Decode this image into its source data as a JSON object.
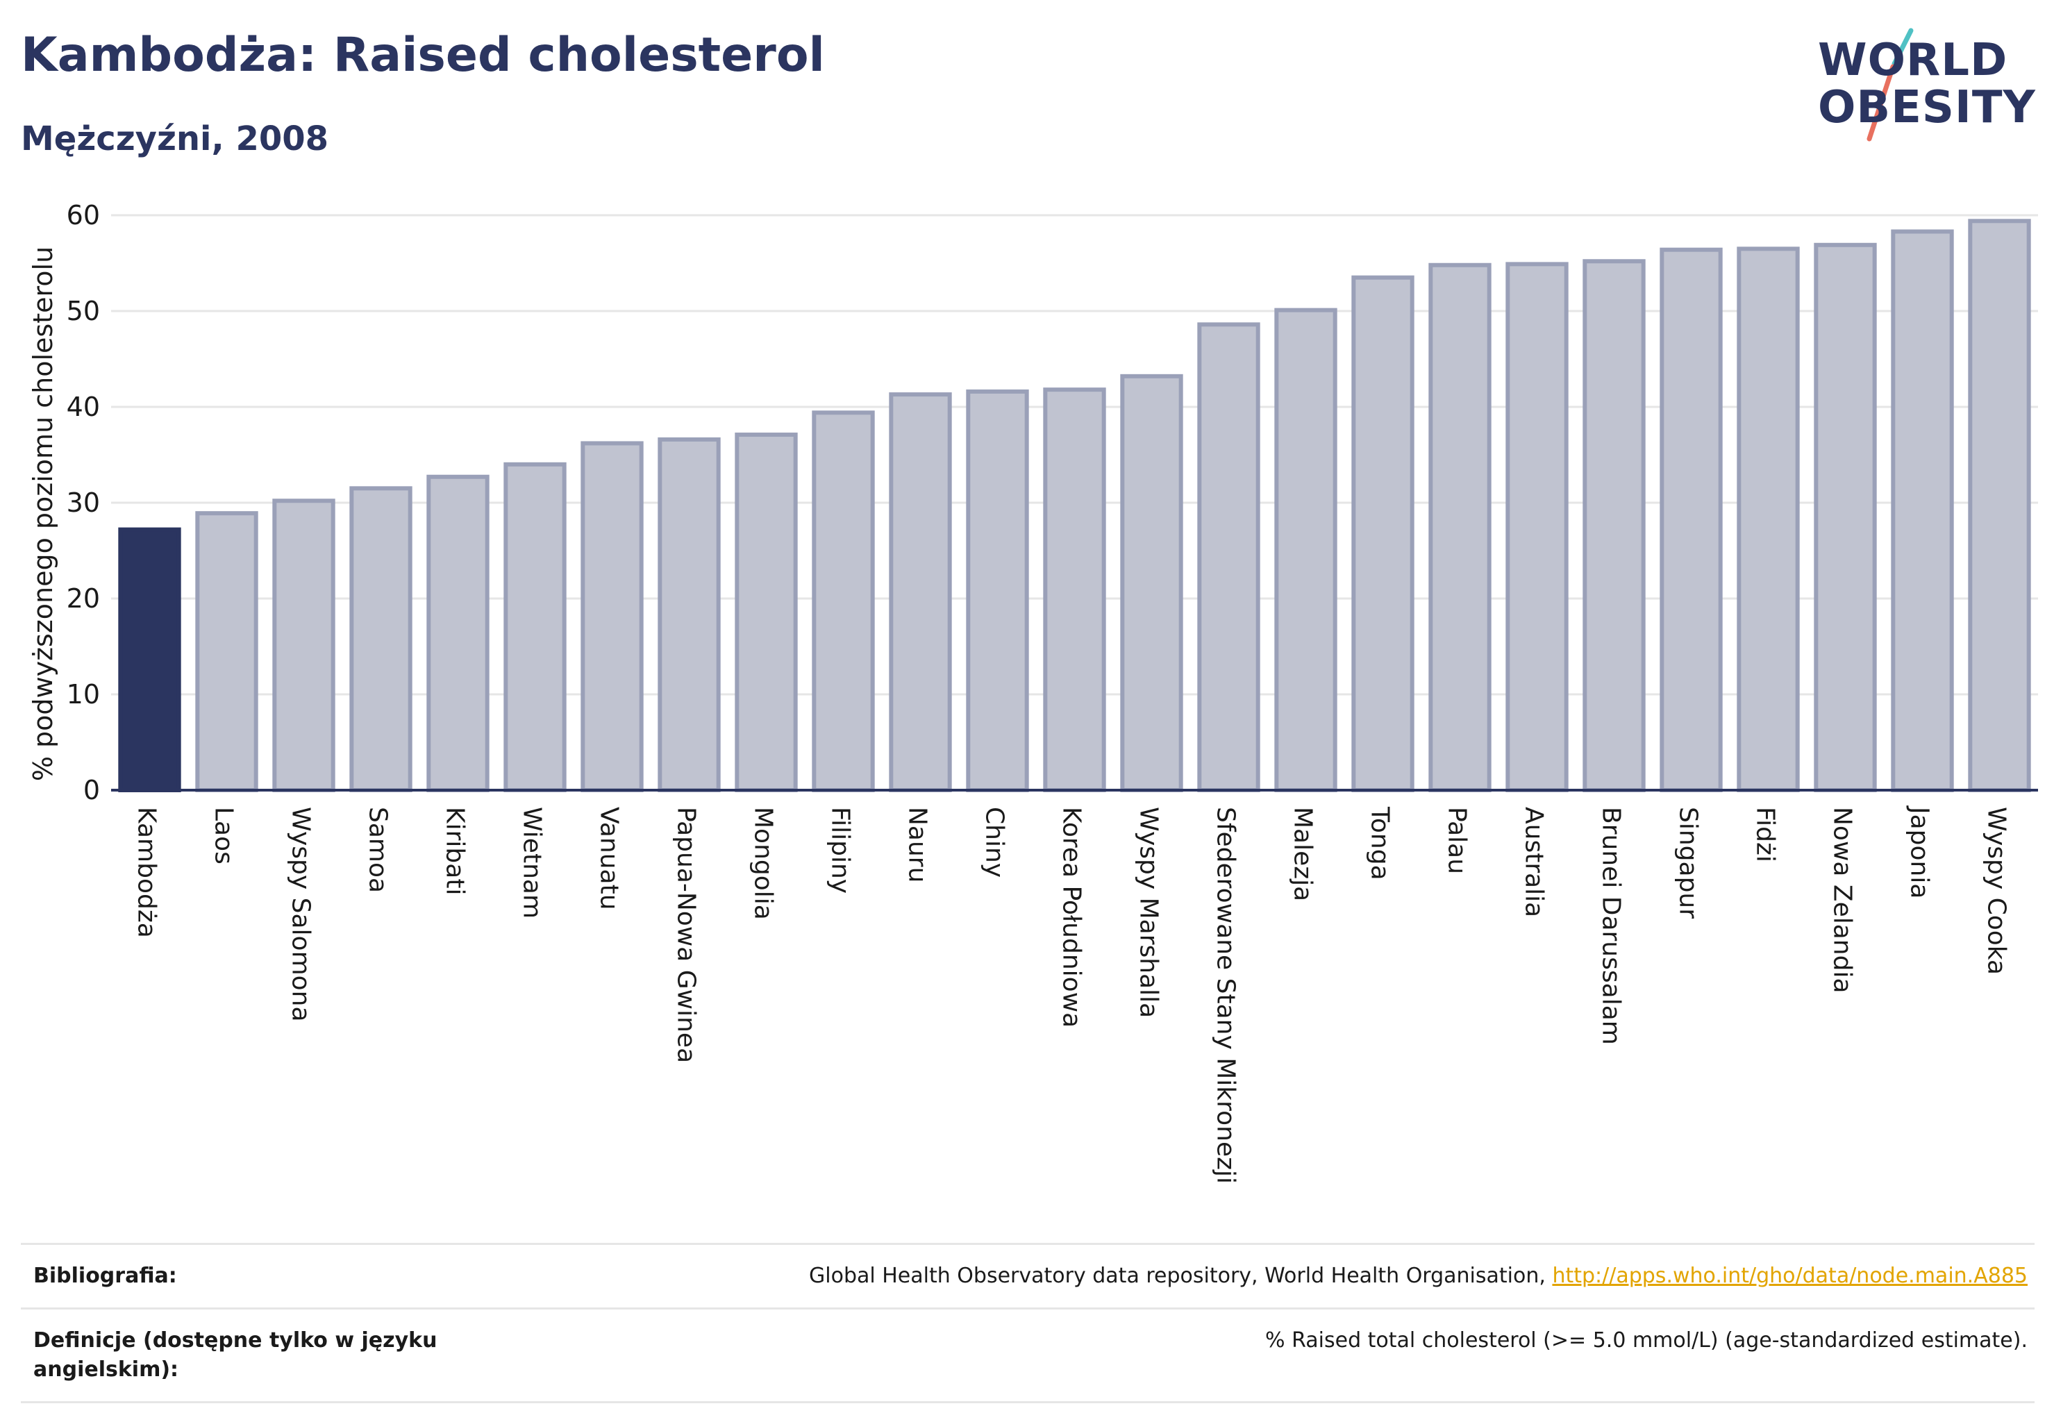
{
  "header": {
    "title": "Kambodża: Raised cholesterol",
    "subtitle": "Mężczyźni, 2008"
  },
  "logo": {
    "line1": "WORLD",
    "line2": "OBESITY",
    "slash_colors": [
      "#4fc1c4",
      "#e8705f"
    ]
  },
  "colors": {
    "highlight_bar": "#2b3560",
    "bar_fill": "#c0c3d0",
    "bar_stroke": "#9aa0b8",
    "grid": "#e6e6e6",
    "axis": "#2b3560"
  },
  "chart_data": {
    "type": "bar",
    "ylabel": "% podwyższonego poziomu cholesterolu",
    "ylim": [
      0,
      60
    ],
    "yticks": [
      0,
      10,
      20,
      30,
      40,
      50,
      60
    ],
    "grid": true,
    "highlight": "Kambodża",
    "categories": [
      "Kambodża",
      "Laos",
      "Wyspy Salomona",
      "Samoa",
      "Kiribati",
      "Wietnam",
      "Vanuatu",
      "Papua-Nowa Gwinea",
      "Mongolia",
      "Filipiny",
      "Nauru",
      "Chiny",
      "Korea Południowa",
      "Wyspy Marshalla",
      "Sfederowane Stany Mikronezji",
      "Malezja",
      "Tonga",
      "Palau",
      "Australia",
      "Brunei Darussalam",
      "Singapur",
      "Fidżi",
      "Nowa Zelandia",
      "Japonia",
      "Wyspy Cooka"
    ],
    "values": [
      27.2,
      28.9,
      30.2,
      31.5,
      32.7,
      34.0,
      36.2,
      36.6,
      37.1,
      39.4,
      41.3,
      41.6,
      41.8,
      43.2,
      48.6,
      50.1,
      53.5,
      54.8,
      54.9,
      55.2,
      56.4,
      56.5,
      56.9,
      58.3,
      59.4
    ]
  },
  "footer": {
    "rows": [
      {
        "label": "Bibliografia:",
        "text": "Global Health Observatory data repository, World Health Organisation, ",
        "link": "http://apps.who.int/gho/data/node.main.A885"
      },
      {
        "label": "Definicje (dostępne tylko w języku angielskim):",
        "text": "% Raised total cholesterol (>= 5.0 mmol/L) (age-standardized estimate).",
        "link": ""
      }
    ]
  }
}
